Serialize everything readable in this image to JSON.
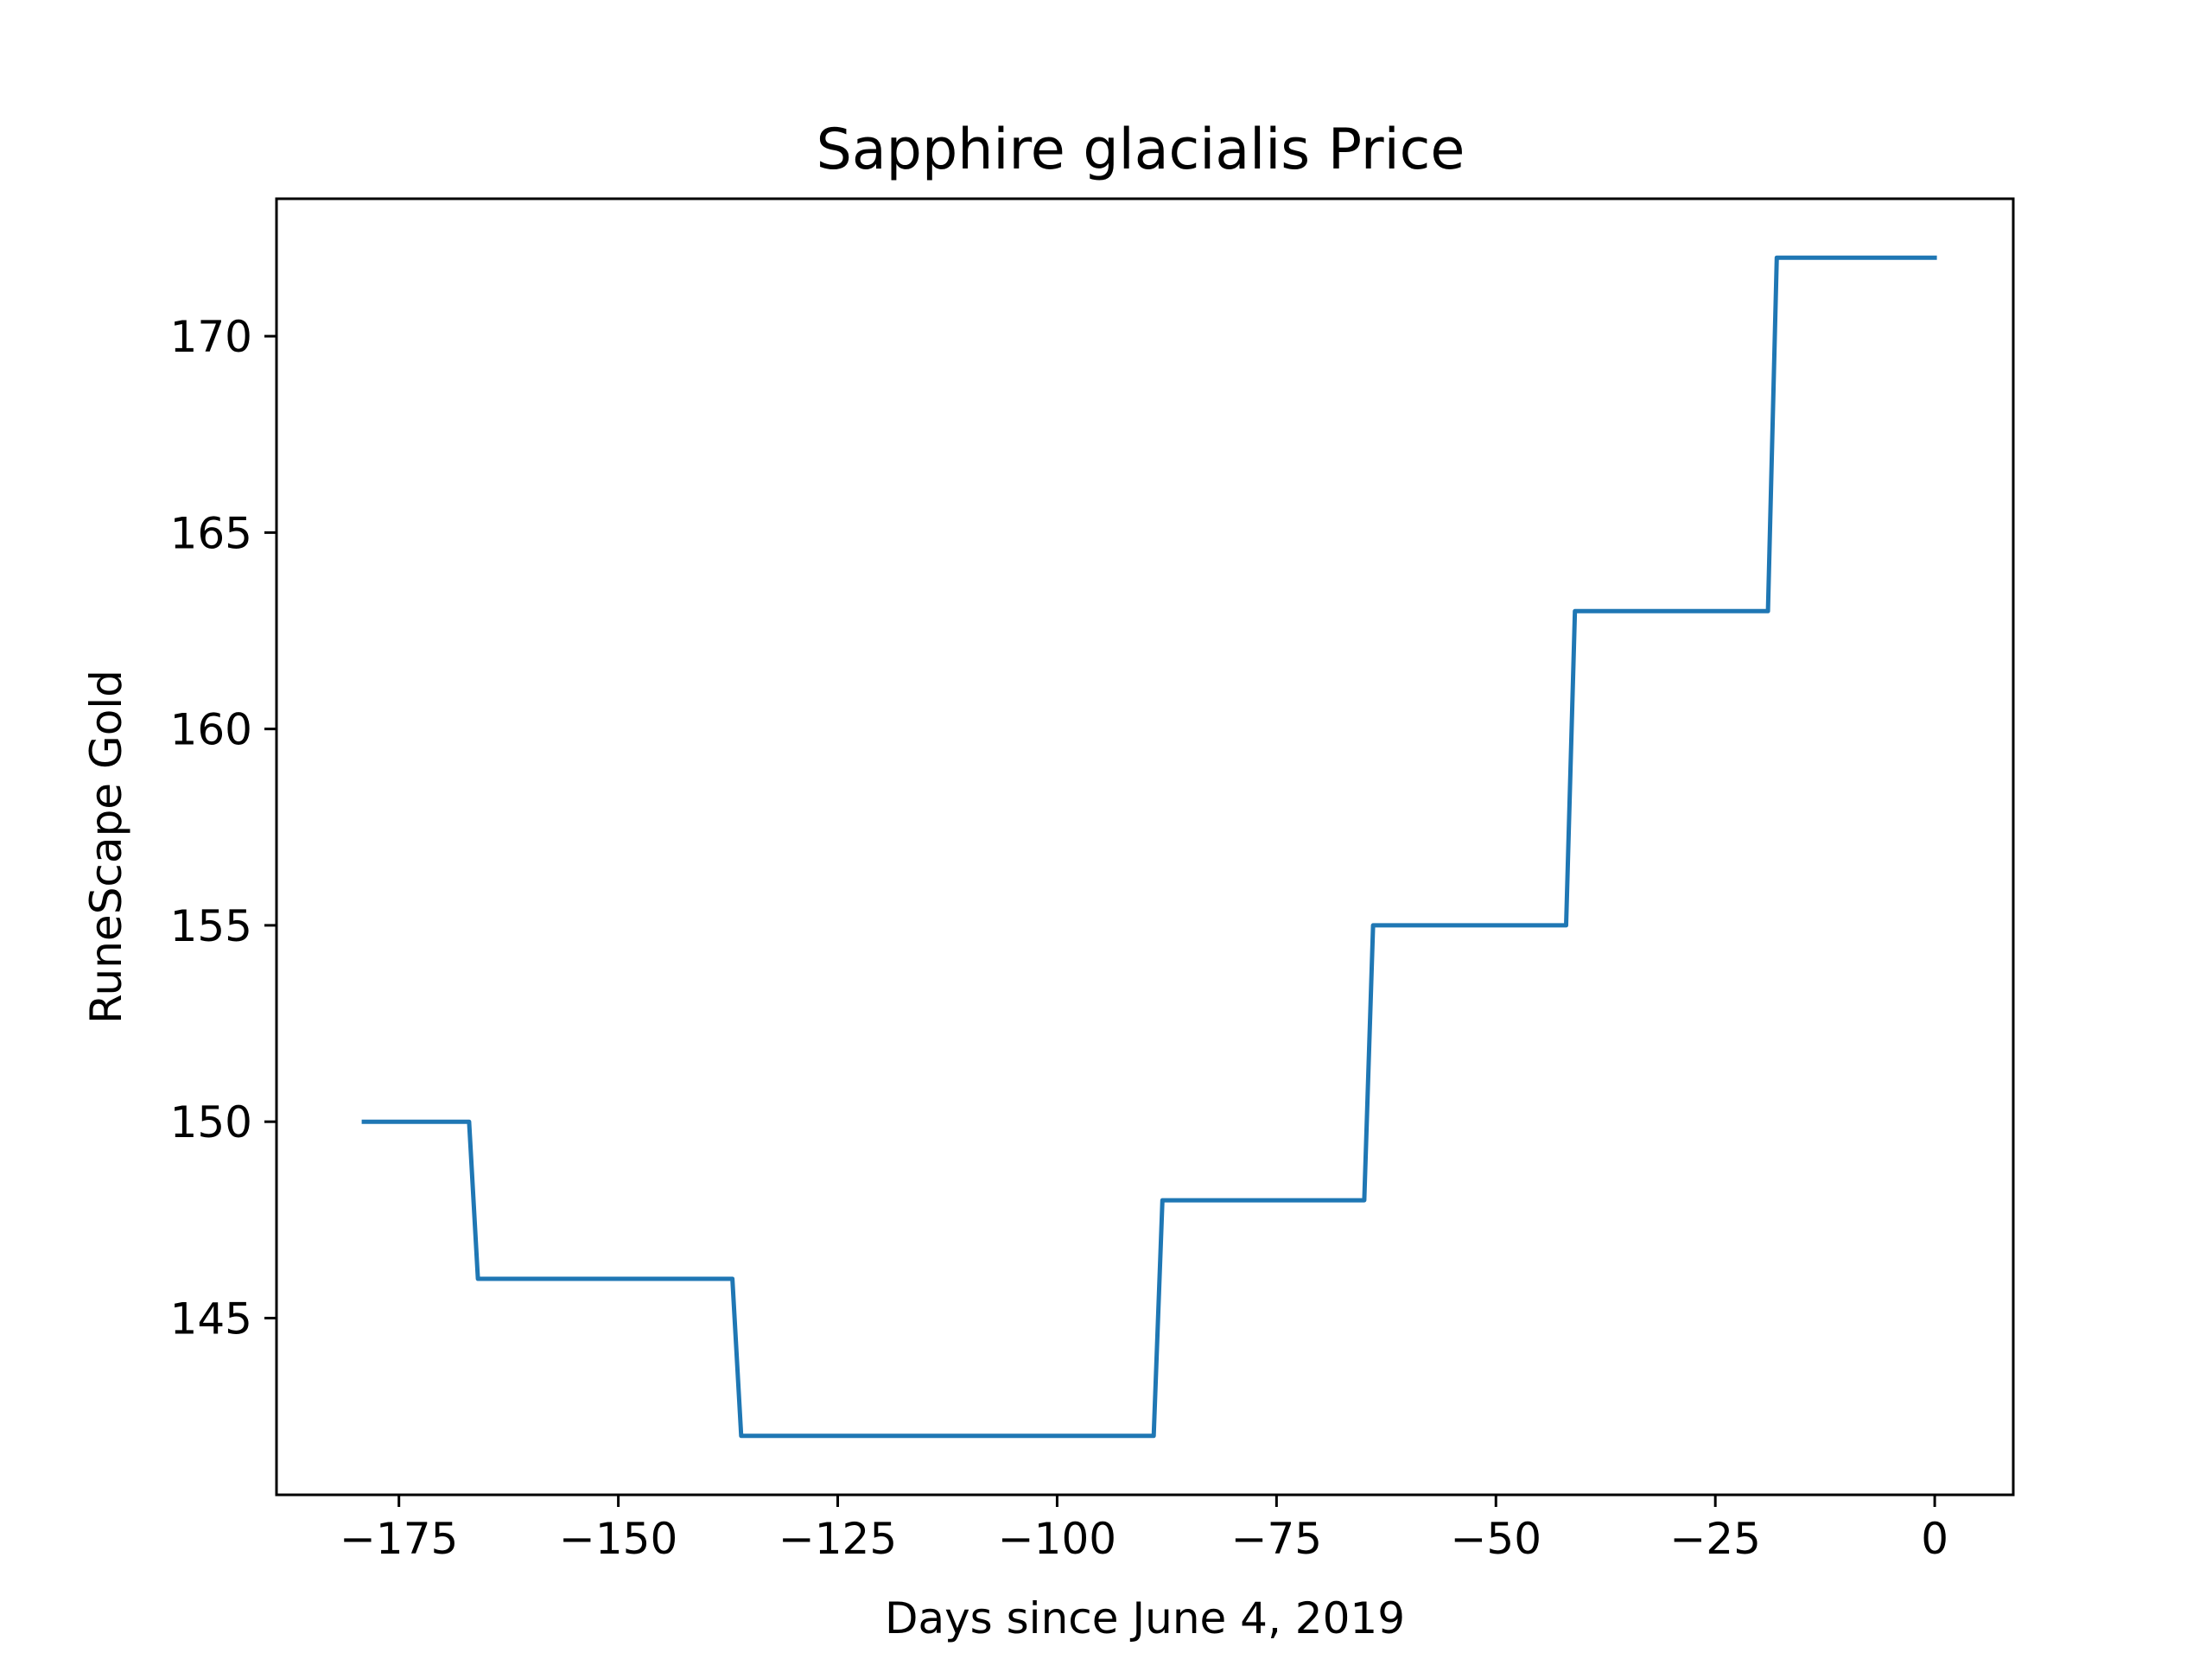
{
  "chart_data": {
    "type": "line",
    "title": "Sapphire glacialis Price",
    "xlabel": "Days since June 4, 2019",
    "ylabel": "RuneScape Gold",
    "xlim": [
      -188.95,
      8.95
    ],
    "ylim": [
      140.5,
      173.5
    ],
    "xticks": [
      -175,
      -150,
      -125,
      -100,
      -75,
      -50,
      -25,
      0
    ],
    "xtick_labels": [
      "−175",
      "−150",
      "−125",
      "−100",
      "−75",
      "−50",
      "−25",
      "0"
    ],
    "yticks": [
      145,
      150,
      155,
      160,
      165,
      170
    ],
    "ytick_labels": [
      "145",
      "150",
      "155",
      "160",
      "165",
      "170"
    ],
    "grid": false,
    "series": [
      {
        "color": "#1f77b4",
        "x": [
          -179,
          -167,
          -166,
          -137,
          -136,
          -89,
          -88,
          -65,
          -64,
          -42,
          -41,
          -19,
          -18,
          0
        ],
        "y": [
          150,
          150,
          146,
          146,
          142,
          142,
          148,
          148,
          155,
          155,
          163,
          163,
          172,
          172
        ]
      }
    ]
  }
}
